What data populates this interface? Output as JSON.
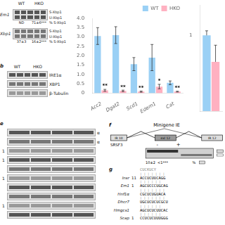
{
  "chart_data": [
    {
      "type": "blot",
      "lanes": [
        "WT",
        "HKO"
      ],
      "rows": [
        {
          "label": "Em1",
          "bands": [
            "S-Xbp1",
            "U-Xbp1"
          ],
          "quantification": [
            "ND",
            "71±6***"
          ],
          "quantity": "% S-Xbp1"
        },
        {
          "label": "Xbp1",
          "bands": [
            "S-Xbp1",
            "U-Xbp1"
          ],
          "quantification": [
            "37±3",
            "16±2***"
          ],
          "quantity": "% S-Xbp1"
        }
      ]
    },
    {
      "type": "blot",
      "panel_label": "b",
      "lanes": [
        "WT",
        "HKO"
      ],
      "rows": [
        {
          "bands": [
            "IRE1α"
          ]
        },
        {
          "bands": [
            "XBP1"
          ]
        },
        {
          "bands": [
            "β-Tubulin"
          ]
        }
      ]
    },
    {
      "type": "bar",
      "categories": [
        "Acc2",
        "Dgat2",
        "Scd1",
        "Edem1",
        "Cat"
      ],
      "series": [
        {
          "name": "WT",
          "values": [
            3.05,
            3.1,
            1.55,
            1.9,
            0.55
          ],
          "errors": [
            0.45,
            0.45,
            0.35,
            0.7,
            0.1
          ]
        },
        {
          "name": "HKO",
          "values": [
            0.15,
            0.12,
            0.08,
            0.35,
            0.08
          ],
          "errors": [
            0.05,
            0.04,
            0.03,
            0.12,
            0.02
          ],
          "annotations": [
            "**",
            "**",
            "**",
            "*",
            "**"
          ]
        }
      ],
      "ylim": [
        0,
        4.0
      ],
      "yticks": [
        0,
        0.5,
        {
          "value": 1.0,
          "label": "1.0"
        },
        1.5,
        {
          "value": 2.0,
          "label": "2.0"
        },
        2.5,
        {
          "value": 3.0,
          "label": "3.0"
        },
        3.5,
        {
          "value": 4.0,
          "label": "4.0"
        }
      ],
      "legend": "upper right",
      "grid": false
    },
    {
      "type": "bar",
      "categories": [
        null
      ],
      "series": [
        {
          "values": [
            1.0
          ],
          "errors_upper": [
            0.06
          ]
        },
        {
          "values": [
            0.65
          ],
          "errors_upper": [
            0.22
          ]
        }
      ],
      "ylim": [
        0,
        1.4
      ],
      "yticks": [
        1
      ],
      "tick_labels": "y",
      "grid": false
    },
    {
      "type": "blot",
      "panel_label": "e",
      "rows": [
        {
          "bands": [
            "α"
          ]
        },
        {
          "bands": [
            "α"
          ]
        },
        {
          "label": "1"
        },
        {
          "label": "1"
        },
        {},
        {
          "label": "1"
        },
        {},
        {},
        {
          "label": "1"
        },
        {}
      ]
    },
    {
      "type": "diagram",
      "panel_label": "f",
      "title": "Minigene IE",
      "boxes": [
        "IR 10",
        "exl 12",
        "IR 12"
      ],
      "row_label": "SRSF3",
      "lanes": [
        "-",
        "+"
      ],
      "quantification": "10±2  <1***",
      "quantity": "%"
    },
    {
      "type": "alignment",
      "panel_label": "g",
      "consensus": "CUCKUCY",
      "consensus_pipes": "| | | | | | |",
      "rows": [
        {
          "name": "Insr",
          "position": "11",
          "sequence": "ACCUCUUCAGG",
          "pipes": "| | | | | |"
        },
        {
          "name": "Em1",
          "position": "1",
          "sequence": "AGCUCCCUGCAG",
          "pipes": "| | | | | | |"
        },
        {
          "name": "Hnf1α",
          "sequence": "CGCUCUGUACA",
          "pipes": "| | | | | | |"
        },
        {
          "name": "Dhcr7",
          "sequence": "UGCUCUCUCGCU",
          "pipes": "| | | | | |"
        },
        {
          "name": "Hmgcs1",
          "sequence": "AGCUCUCUUCAC",
          "pipes": "| | | | | |"
        },
        {
          "name": "Scap",
          "position": "1",
          "sequence": "CCUCUCUUUGGG"
        }
      ]
    }
  ]
}
